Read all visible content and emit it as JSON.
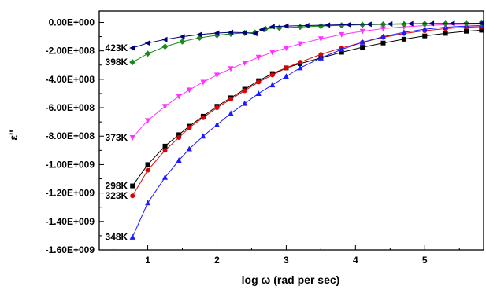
{
  "chart_data": {
    "type": "line",
    "title": "",
    "xlabel": "log ω (rad per sec)",
    "ylabel": "ε''",
    "xlim": [
      0.3,
      5.85
    ],
    "ylim": [
      -1600000000,
      80000000
    ],
    "xticks": [
      1,
      2,
      3,
      4,
      5
    ],
    "xtick_labels": [
      "1",
      "2",
      "3",
      "4",
      "5"
    ],
    "yticks": [
      0,
      -200000000,
      -400000000,
      -600000000,
      -800000000,
      -1000000000,
      -1200000000,
      -1400000000,
      -1600000000
    ],
    "ytick_labels": [
      "0.00E+000",
      "-2.00E+008",
      "-4.00E+008",
      "-6.00E+008",
      "-8.00E+008",
      "-1.00E+009",
      "-1.20E+009",
      "-1.40E+009",
      "-1.60E+009"
    ],
    "grid": false,
    "legend": "none",
    "series": [
      {
        "name": "298K",
        "color": "#000000",
        "marker": "square",
        "points": [
          [
            0.78,
            -1150000000
          ],
          [
            1.0,
            -1000000000
          ],
          [
            1.25,
            -870000000
          ],
          [
            1.45,
            -790000000
          ],
          [
            1.6,
            -730000000
          ],
          [
            1.8,
            -660000000
          ],
          [
            2.0,
            -590000000
          ],
          [
            2.2,
            -530000000
          ],
          [
            2.4,
            -470000000
          ],
          [
            2.6,
            -410000000
          ],
          [
            2.8,
            -360000000
          ],
          [
            3.0,
            -320000000
          ],
          [
            3.2,
            -290000000
          ],
          [
            3.5,
            -250000000
          ],
          [
            3.8,
            -210000000
          ],
          [
            4.1,
            -175000000
          ],
          [
            4.4,
            -145000000
          ],
          [
            4.7,
            -118000000
          ],
          [
            5.0,
            -95000000
          ],
          [
            5.3,
            -77000000
          ],
          [
            5.6,
            -62000000
          ],
          [
            5.82,
            -55000000
          ]
        ]
      },
      {
        "name": "323K",
        "color": "#e00000",
        "marker": "circle",
        "points": [
          [
            0.78,
            -1220000000
          ],
          [
            1.0,
            -1040000000
          ],
          [
            1.25,
            -900000000
          ],
          [
            1.45,
            -810000000
          ],
          [
            1.6,
            -740000000
          ],
          [
            1.8,
            -670000000
          ],
          [
            2.0,
            -600000000
          ],
          [
            2.2,
            -540000000
          ],
          [
            2.4,
            -480000000
          ],
          [
            2.6,
            -420000000
          ],
          [
            2.8,
            -370000000
          ],
          [
            3.0,
            -320000000
          ],
          [
            3.2,
            -280000000
          ],
          [
            3.5,
            -225000000
          ],
          [
            3.8,
            -180000000
          ],
          [
            4.1,
            -140000000
          ],
          [
            4.4,
            -105000000
          ],
          [
            4.7,
            -78000000
          ],
          [
            5.0,
            -58000000
          ],
          [
            5.3,
            -44000000
          ],
          [
            5.6,
            -34000000
          ],
          [
            5.82,
            -30000000
          ]
        ]
      },
      {
        "name": "348K",
        "color": "#1a1aff",
        "marker": "triangle-up",
        "points": [
          [
            0.78,
            -1510000000
          ],
          [
            0.78,
            -1510000000
          ],
          [
            1.0,
            -1270000000
          ],
          [
            1.25,
            -1090000000
          ],
          [
            1.45,
            -970000000
          ],
          [
            1.6,
            -890000000
          ],
          [
            1.8,
            -800000000
          ],
          [
            2.0,
            -720000000
          ],
          [
            2.2,
            -640000000
          ],
          [
            2.4,
            -570000000
          ],
          [
            2.6,
            -500000000
          ],
          [
            2.8,
            -440000000
          ],
          [
            3.0,
            -380000000
          ],
          [
            3.2,
            -320000000
          ],
          [
            3.5,
            -250000000
          ],
          [
            3.8,
            -190000000
          ],
          [
            4.1,
            -140000000
          ],
          [
            4.4,
            -100000000
          ],
          [
            4.7,
            -70000000
          ],
          [
            5.0,
            -48000000
          ],
          [
            5.3,
            -34000000
          ],
          [
            5.6,
            -26000000
          ],
          [
            5.82,
            -22000000
          ]
        ]
      },
      {
        "name": "373K",
        "color": "#ff33ff",
        "marker": "triangle-down",
        "points": [
          [
            0.78,
            -810000000
          ],
          [
            1.0,
            -690000000
          ],
          [
            1.25,
            -590000000
          ],
          [
            1.45,
            -520000000
          ],
          [
            1.6,
            -475000000
          ],
          [
            1.8,
            -420000000
          ],
          [
            2.0,
            -370000000
          ],
          [
            2.2,
            -325000000
          ],
          [
            2.4,
            -285000000
          ],
          [
            2.6,
            -245000000
          ],
          [
            2.8,
            -210000000
          ],
          [
            3.0,
            -180000000
          ],
          [
            3.2,
            -150000000
          ],
          [
            3.5,
            -115000000
          ],
          [
            3.8,
            -85000000
          ],
          [
            4.1,
            -62000000
          ],
          [
            4.4,
            -44000000
          ],
          [
            4.7,
            -31000000
          ],
          [
            5.0,
            -22000000
          ],
          [
            5.3,
            -16000000
          ],
          [
            5.6,
            -13000000
          ],
          [
            5.82,
            -11000000
          ]
        ]
      },
      {
        "name": "398K",
        "color": "#1a8a1a",
        "marker": "diamond",
        "points": [
          [
            0.78,
            -280000000
          ],
          [
            1.0,
            -220000000
          ],
          [
            1.25,
            -170000000
          ],
          [
            1.5,
            -135000000
          ],
          [
            1.75,
            -108000000
          ],
          [
            2.0,
            -90000000
          ],
          [
            2.2,
            -80000000
          ],
          [
            2.4,
            -74000000
          ],
          [
            2.55,
            -72000000
          ],
          [
            2.7,
            -45000000
          ],
          [
            2.9,
            -38000000
          ],
          [
            3.2,
            -32000000
          ],
          [
            3.5,
            -26000000
          ],
          [
            3.8,
            -21000000
          ],
          [
            4.1,
            -17000000
          ],
          [
            4.4,
            -14000000
          ],
          [
            4.7,
            -12000000
          ],
          [
            5.0,
            -10000000
          ],
          [
            5.3,
            -9000000
          ],
          [
            5.6,
            -8000000
          ],
          [
            5.82,
            -7000000
          ]
        ]
      },
      {
        "name": "423K",
        "color": "#00007a",
        "marker": "triangle-left",
        "points": [
          [
            0.78,
            -180000000
          ],
          [
            1.0,
            -145000000
          ],
          [
            1.25,
            -120000000
          ],
          [
            1.5,
            -100000000
          ],
          [
            1.75,
            -85000000
          ],
          [
            2.0,
            -75000000
          ],
          [
            2.2,
            -70000000
          ],
          [
            2.4,
            -72000000
          ],
          [
            2.55,
            -78000000
          ],
          [
            2.65,
            -50000000
          ],
          [
            2.8,
            -30000000
          ],
          [
            3.0,
            -26000000
          ],
          [
            3.3,
            -22000000
          ],
          [
            3.6,
            -19000000
          ],
          [
            3.9,
            -16000000
          ],
          [
            4.2,
            -13000000
          ],
          [
            4.5,
            -11000000
          ],
          [
            4.8,
            -9000000
          ],
          [
            5.1,
            -8000000
          ],
          [
            5.4,
            -7000000
          ],
          [
            5.82,
            -6000000
          ]
        ]
      }
    ]
  }
}
